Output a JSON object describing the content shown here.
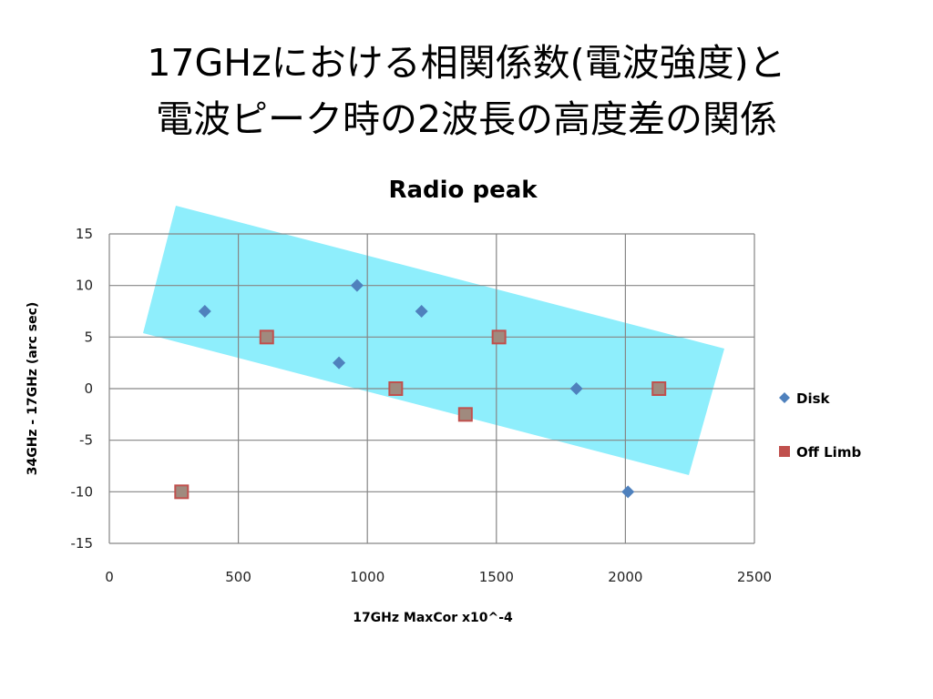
{
  "slide": {
    "title_line1": "17GHzにおける相関係数(電波強度)と",
    "title_line2": "電波ピーク時の2波長の高度差の関係"
  },
  "chart_data": {
    "type": "scatter",
    "title": "Radio peak",
    "xlabel": "17GHz MaxCor x10^-4",
    "ylabel": "34GHz - 17GHz (arc sec)",
    "xlim": [
      0,
      2500
    ],
    "ylim": [
      -15,
      15
    ],
    "xticks": [
      0,
      500,
      1000,
      1500,
      2000,
      2500
    ],
    "yticks": [
      15,
      10,
      5,
      0,
      -5,
      -10,
      -15
    ],
    "grid": true,
    "legend_position": "right",
    "series": [
      {
        "name": "Disk",
        "marker": "diamond",
        "color": "#4f81bd",
        "points": [
          {
            "x": 370,
            "y": 7.5
          },
          {
            "x": 890,
            "y": 2.5
          },
          {
            "x": 960,
            "y": 10
          },
          {
            "x": 1210,
            "y": 7.5
          },
          {
            "x": 1810,
            "y": 0
          },
          {
            "x": 2010,
            "y": -10
          }
        ]
      },
      {
        "name": "Off Limb",
        "marker": "square",
        "color": "#c0504d",
        "points": [
          {
            "x": 280,
            "y": -10
          },
          {
            "x": 610,
            "y": 5
          },
          {
            "x": 1110,
            "y": 0
          },
          {
            "x": 1380,
            "y": -2.5
          },
          {
            "x": 1510,
            "y": 5
          },
          {
            "x": 2130,
            "y": 0
          }
        ]
      }
    ],
    "annotations": [
      {
        "type": "highlight-band",
        "color": "#8eeefc"
      }
    ]
  }
}
